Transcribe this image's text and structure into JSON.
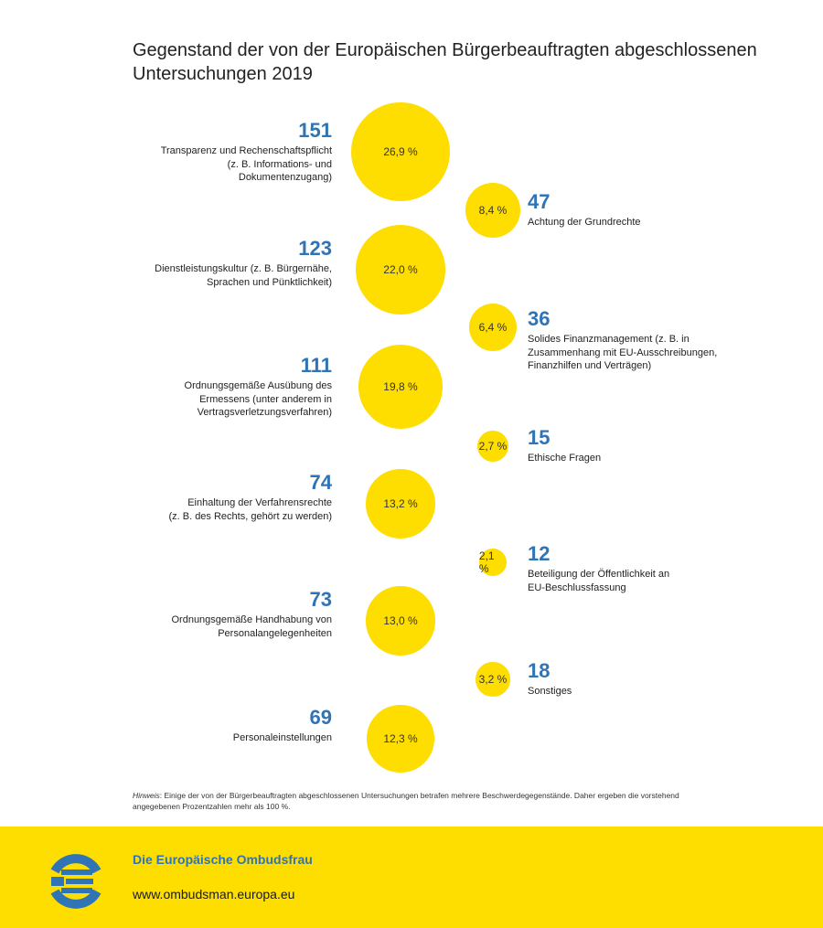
{
  "title": "Gegenstand der von der Europäischen Bürgerbeauftragten abgeschlossenen Untersuchungen 2019",
  "chart_data": {
    "type": "bubble",
    "title": "Gegenstand der von der Europäischen Bürgerbeauftragten abgeschlossenen Untersuchungen 2019",
    "color": "#fedd00",
    "number_color": "#2f74b5",
    "items": [
      {
        "count": "151",
        "label": "Transparenz und Rechenschaftspflicht\n(z. B. Informations- und\nDokumentenzugang)",
        "percent": "26,9 %",
        "value": 26.9,
        "side": "left"
      },
      {
        "count": "47",
        "label": "Achtung der Grundrechte",
        "percent": "8,4 %",
        "value": 8.4,
        "side": "right"
      },
      {
        "count": "123",
        "label": "Dienstleistungskultur (z. B. Bürgernähe,\nSprachen und Pünktlichkeit)",
        "percent": "22,0 %",
        "value": 22.0,
        "side": "left"
      },
      {
        "count": "36",
        "label": "Solides Finanzmanagement (z. B. in\nZusammenhang mit EU-Ausschreibungen,\nFinanzhilfen und Verträgen)",
        "percent": "6,4 %",
        "value": 6.4,
        "side": "right"
      },
      {
        "count": "111",
        "label": "Ordnungsgemäße Ausübung des\nErmessens (unter anderem in\nVertragsverletzungsverfahren)",
        "percent": "19,8 %",
        "value": 19.8,
        "side": "left"
      },
      {
        "count": "15",
        "label": "Ethische Fragen",
        "percent": "2,7 %",
        "value": 2.7,
        "side": "right"
      },
      {
        "count": "74",
        "label": "Einhaltung der Verfahrensrechte\n(z. B. des Rechts, gehört zu werden)",
        "percent": "13,2 %",
        "value": 13.2,
        "side": "left"
      },
      {
        "count": "12",
        "label": "Beteiligung der Öffentlichkeit an\nEU-Beschlussfassung",
        "percent": "2,1 %",
        "value": 2.1,
        "side": "right"
      },
      {
        "count": "73",
        "label": "Ordnungsgemäße Handhabung von\nPersonalangelegenheiten",
        "percent": "13,0 %",
        "value": 13.0,
        "side": "left"
      },
      {
        "count": "18",
        "label": "Sonstiges",
        "percent": "3,2 %",
        "value": 3.2,
        "side": "right"
      },
      {
        "count": "69",
        "label": "Personaleinstellungen",
        "percent": "12,3 %",
        "value": 12.3,
        "side": "left"
      }
    ]
  },
  "note": {
    "prefix": "Hinweis",
    "text": ": Einige der von der Bürgerbeauftragten abgeschlossenen Untersuchungen betrafen mehrere Beschwerdegegenstände. Daher ergeben die vorstehend angegebenen Prozentzahlen mehr als 100 %."
  },
  "footer": {
    "brand": "Die Europäische Ombudsfrau",
    "url": "www.ombudsman.europa.eu",
    "logo_color": "#2f74b5",
    "background": "#fedd00"
  }
}
